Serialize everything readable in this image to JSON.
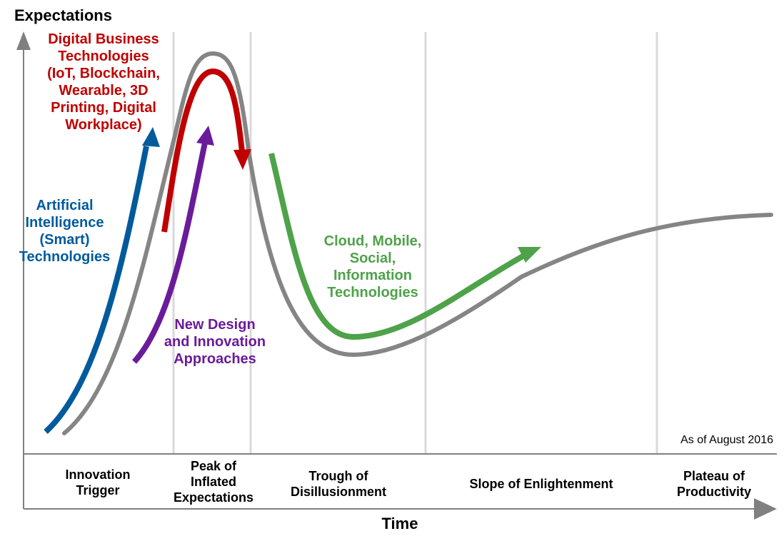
{
  "axes": {
    "y_label": "Expectations",
    "x_label": "Time"
  },
  "date_note": "As of August 2016",
  "phases": [
    "Innovation\nTrigger",
    "Peak of\nInflated\nExpectations",
    "Trough of\nDisillusionment",
    "Slope of Enlightenment",
    "Plateau of\nProductivity"
  ],
  "technologies": {
    "digital_business": {
      "text": "Digital Business\nTechnologies\n(IoT, Blockchain,\nWearable, 3D\nPrinting, Digital\nWorkplace)",
      "color": "#c00000"
    },
    "artificial_intelligence": {
      "text": "Artificial\nIntelligence\n(Smart)\nTechnologies",
      "color": "#005a9c"
    },
    "cloud_mobile": {
      "text": "Cloud, Mobile,\nSocial,\nInformation\nTechnologies",
      "color": "#4ea24a"
    },
    "design_innovation": {
      "text": "New Design\nand Innovation\nApproaches",
      "color": "#6a1b9a"
    }
  },
  "colors": {
    "hype_curve": "#858585",
    "axis": "#808080",
    "divider": "#d9d9d9"
  }
}
